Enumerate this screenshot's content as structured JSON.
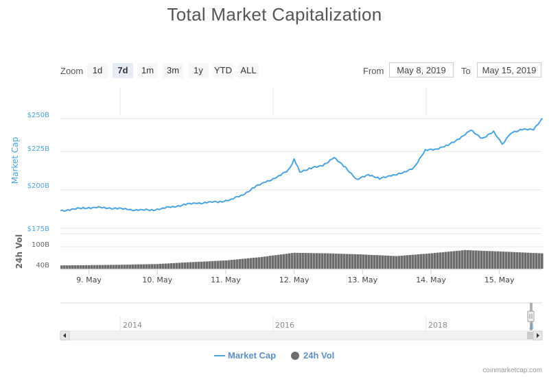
{
  "title": "Total Market Capitalization",
  "zoom": {
    "label": "Zoom",
    "buttons": [
      "1d",
      "7d",
      "1m",
      "3m",
      "1y",
      "YTD",
      "ALL"
    ],
    "selected": "7d"
  },
  "range": {
    "from_label": "From",
    "from_value": "May 8, 2019",
    "to_label": "To",
    "to_value": "May 15, 2019"
  },
  "legend": {
    "market_cap": "Market Cap",
    "volume": "24h Vol"
  },
  "credit": "coinmarketcap.com",
  "colors": {
    "market_cap_line": "#4aa3df",
    "volume_bars": "#6e6e6e",
    "grid": "#e6e6e6",
    "axis_text": "#666666"
  },
  "chart_data": {
    "type": "line",
    "title": "Total Market Capitalization",
    "x_axis": {
      "tick_labels": [
        "9. May",
        "10. May",
        "11. May",
        "12. May",
        "13. May",
        "14. May",
        "15. May"
      ],
      "range": [
        "2019-05-08T14:00",
        "2019-05-15T15:00"
      ]
    },
    "market_cap_axis": {
      "label": "Market Cap",
      "tick_labels": [
        "$175B",
        "$200B",
        "$225B",
        "$250B"
      ],
      "ylim": [
        175,
        250
      ]
    },
    "volume_axis": {
      "label": "24h Vol",
      "tick_labels": [
        "40B",
        "100B"
      ],
      "ylim": [
        20,
        110
      ]
    },
    "series": [
      {
        "name": "Market Cap",
        "unit": "B USD",
        "points": [
          [
            "2019-05-08T14:00",
            187.0
          ],
          [
            "2019-05-08T18:00",
            187.8
          ],
          [
            "2019-05-08T22:00",
            188.9
          ],
          [
            "2019-05-09T02:00",
            189.2
          ],
          [
            "2019-05-09T06:00",
            189.0
          ],
          [
            "2019-05-09T10:00",
            188.5
          ],
          [
            "2019-05-09T14:00",
            187.8
          ],
          [
            "2019-05-09T18:00",
            187.4
          ],
          [
            "2019-05-09T22:00",
            187.5
          ],
          [
            "2019-05-10T02:00",
            188.6
          ],
          [
            "2019-05-10T06:00",
            189.9
          ],
          [
            "2019-05-10T10:00",
            191.3
          ],
          [
            "2019-05-10T14:00",
            192.2
          ],
          [
            "2019-05-10T18:00",
            192.6
          ],
          [
            "2019-05-10T22:00",
            193.2
          ],
          [
            "2019-05-11T02:00",
            194.6
          ],
          [
            "2019-05-11T06:00",
            198.0
          ],
          [
            "2019-05-11T10:00",
            202.8
          ],
          [
            "2019-05-11T14:00",
            206.9
          ],
          [
            "2019-05-11T18:00",
            209.6
          ],
          [
            "2019-05-11T22:00",
            215.0
          ],
          [
            "2019-05-12T00:00",
            221.9
          ],
          [
            "2019-05-12T02:00",
            213.8
          ],
          [
            "2019-05-12T06:00",
            215.9
          ],
          [
            "2019-05-12T10:00",
            218.1
          ],
          [
            "2019-05-12T14:00",
            223.0
          ],
          [
            "2019-05-12T18:00",
            216.9
          ],
          [
            "2019-05-12T22:00",
            208.0
          ],
          [
            "2019-05-13T02:00",
            212.0
          ],
          [
            "2019-05-13T06:00",
            208.7
          ],
          [
            "2019-05-13T10:00",
            211.3
          ],
          [
            "2019-05-13T14:00",
            212.4
          ],
          [
            "2019-05-13T18:00",
            216.6
          ],
          [
            "2019-05-13T22:00",
            228.1
          ],
          [
            "2019-05-14T02:00",
            229.5
          ],
          [
            "2019-05-14T06:00",
            231.6
          ],
          [
            "2019-05-14T10:00",
            236.6
          ],
          [
            "2019-05-14T14:00",
            241.8
          ],
          [
            "2019-05-14T18:00",
            236.6
          ],
          [
            "2019-05-14T22:00",
            240.8
          ],
          [
            "2019-05-15T01:00",
            232.7
          ],
          [
            "2019-05-15T04:00",
            239.8
          ],
          [
            "2019-05-15T08:00",
            243.0
          ],
          [
            "2019-05-15T12:00",
            242.1
          ],
          [
            "2019-05-15T15:00",
            250.3
          ]
        ]
      },
      {
        "name": "24h Vol",
        "unit": "B USD",
        "points": [
          [
            "2019-05-08T14:00",
            32.0
          ],
          [
            "2019-05-09T00:00",
            33.0
          ],
          [
            "2019-05-09T12:00",
            34.5
          ],
          [
            "2019-05-10T00:00",
            37.0
          ],
          [
            "2019-05-10T12:00",
            44.0
          ],
          [
            "2019-05-11T00:00",
            50.0
          ],
          [
            "2019-05-11T12:00",
            62.0
          ],
          [
            "2019-05-12T00:00",
            78.0
          ],
          [
            "2019-05-12T12:00",
            76.0
          ],
          [
            "2019-05-13T00:00",
            72.0
          ],
          [
            "2019-05-13T12:00",
            66.0
          ],
          [
            "2019-05-14T00:00",
            76.0
          ],
          [
            "2019-05-14T12:00",
            88.0
          ],
          [
            "2019-05-15T00:00",
            83.0
          ],
          [
            "2019-05-15T15:00",
            76.0
          ]
        ]
      }
    ],
    "navigator": {
      "tick_labels": [
        "2014",
        "2016",
        "2018"
      ]
    },
    "legend_position": "bottom-center",
    "grid": true
  }
}
